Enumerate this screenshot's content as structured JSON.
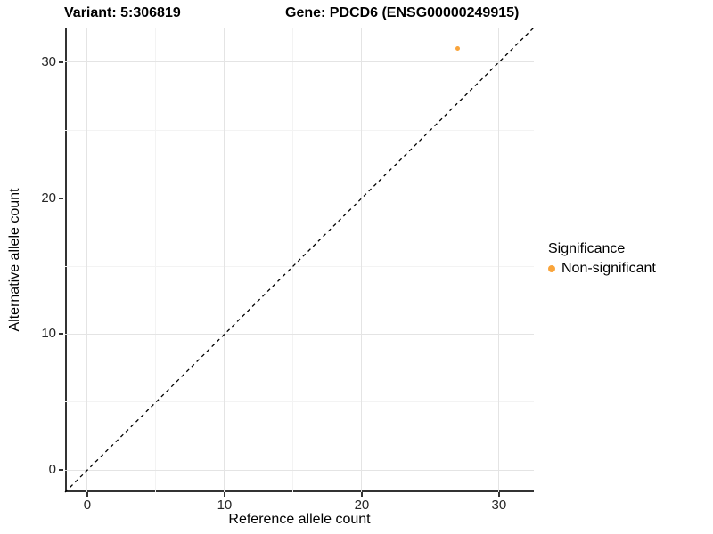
{
  "title": {
    "variant": "Variant: 5:306819",
    "gene": "Gene: PDCD6 (ENSG00000249915)"
  },
  "chart_data": {
    "type": "scatter",
    "title": "Variant: 5:306819   Gene: PDCD6 (ENSG00000249915)",
    "xlabel": "Reference allele count",
    "ylabel": "Alternative allele count",
    "xlim": [
      -1.62,
      32.54
    ],
    "ylim": [
      -1.62,
      32.54
    ],
    "xticks": [
      0,
      10,
      20,
      30
    ],
    "yticks": [
      0,
      10,
      20,
      30
    ],
    "minor_tick_step": 5,
    "grid": "on",
    "points": [
      {
        "x": 27,
        "y": 31,
        "series": "Non-significant"
      }
    ],
    "reference_line": {
      "kind": "identity",
      "style": "dashed",
      "color": "#000000"
    },
    "legend": {
      "title": "Significance",
      "position": "right",
      "items": [
        {
          "label": "Non-significant",
          "color": "#F9A43B"
        }
      ]
    }
  }
}
